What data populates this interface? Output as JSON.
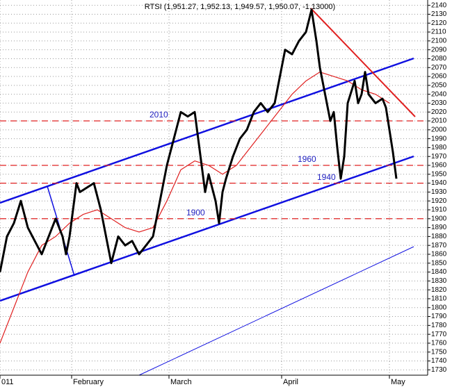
{
  "chart_data": {
    "type": "line",
    "title": "RTSI (1,951.27, 1,952.13, 1,949.57, 1,950.07, -1.13000)",
    "series": [
      {
        "color": "#000000",
        "x": [
          0,
          10,
          20,
          30,
          40,
          50,
          60,
          70,
          80,
          90,
          95,
          100,
          105,
          110,
          115,
          125,
          135,
          145,
          155,
          160,
          170,
          180,
          190,
          200,
          210,
          220,
          230,
          240,
          250,
          260,
          270,
          280,
          285,
          290,
          295,
          300,
          310,
          315,
          320,
          325,
          335,
          345,
          355,
          365,
          375,
          385,
          395,
          400,
          410,
          420,
          430,
          440,
          448,
          455,
          460,
          465,
          470,
          475,
          480,
          485,
          490,
          495,
          500,
          510,
          515,
          520,
          525,
          530,
          540,
          550,
          555,
          560,
          565,
          570
        ],
        "values": [
          1840,
          1880,
          1895,
          1920,
          1890,
          1875,
          1860,
          1880,
          1900,
          1880,
          1860,
          1880,
          1910,
          1940,
          1930,
          1935,
          1940,
          1910,
          1870,
          1850,
          1880,
          1870,
          1875,
          1860,
          1870,
          1880,
          1920,
          1960,
          1990,
          2020,
          2015,
          2020,
          1990,
          1960,
          1930,
          1950,
          1920,
          1895,
          1930,
          1945,
          1970,
          1990,
          2000,
          2020,
          2030,
          2020,
          2030,
          2050,
          2090,
          2085,
          2100,
          2110,
          2135,
          2100,
          2070,
          2050,
          2030,
          2010,
          2020,
          1980,
          1945,
          1970,
          2030,
          2055,
          2030,
          2040,
          2065,
          2040,
          2030,
          2035,
          2025,
          2000,
          1975,
          1945
        ]
      },
      {
        "color": "#e02020",
        "x": [
          0,
          20,
          40,
          60,
          80,
          100,
          120,
          140,
          160,
          180,
          200,
          220,
          240,
          260,
          280,
          300,
          320,
          340,
          360,
          380,
          400,
          420,
          440,
          460,
          480,
          500,
          520,
          540,
          560
        ],
        "values": [
          1760,
          1800,
          1840,
          1870,
          1880,
          1895,
          1905,
          1910,
          1900,
          1890,
          1885,
          1890,
          1920,
          1955,
          1965,
          1960,
          1950,
          1960,
          1980,
          2000,
          2020,
          2040,
          2055,
          2065,
          2060,
          2055,
          2045,
          2040,
          2030
        ]
      }
    ],
    "hlines": [
      2010,
      1960,
      1940,
      1900
    ],
    "xlim": [
      0,
      615
    ],
    "xticks": [
      {
        "value": 0,
        "label": "011"
      },
      {
        "value": 103,
        "label": "February"
      },
      {
        "value": 243,
        "label": "March"
      },
      {
        "value": 405,
        "label": "April"
      },
      {
        "value": 560,
        "label": "May"
      }
    ],
    "ylim": [
      1724,
      2146
    ],
    "yticks": [
      1730,
      1740,
      1750,
      1760,
      1770,
      1780,
      1790,
      1800,
      1810,
      1820,
      1830,
      1840,
      1850,
      1860,
      1870,
      1880,
      1890,
      1900,
      1910,
      1920,
      1930,
      1940,
      1950,
      1960,
      1970,
      1980,
      1990,
      2000,
      2010,
      2020,
      2030,
      2040,
      2050,
      2060,
      2070,
      2080,
      2090,
      2100,
      2110,
      2120,
      2130,
      2140
    ],
    "grid": true
  }
}
